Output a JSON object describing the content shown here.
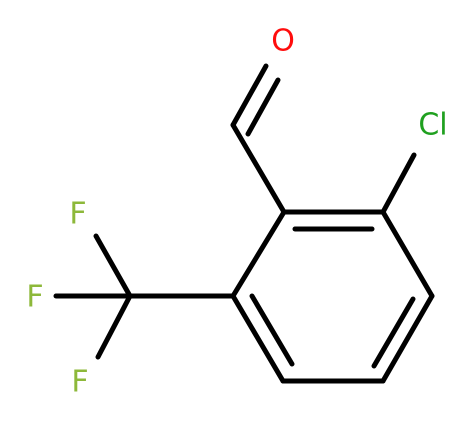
{
  "atoms": [
    {
      "label": "O"
    },
    {
      "label": "Cl"
    },
    {
      "label": "F"
    },
    {
      "label": "F"
    },
    {
      "label": "F"
    }
  ]
}
